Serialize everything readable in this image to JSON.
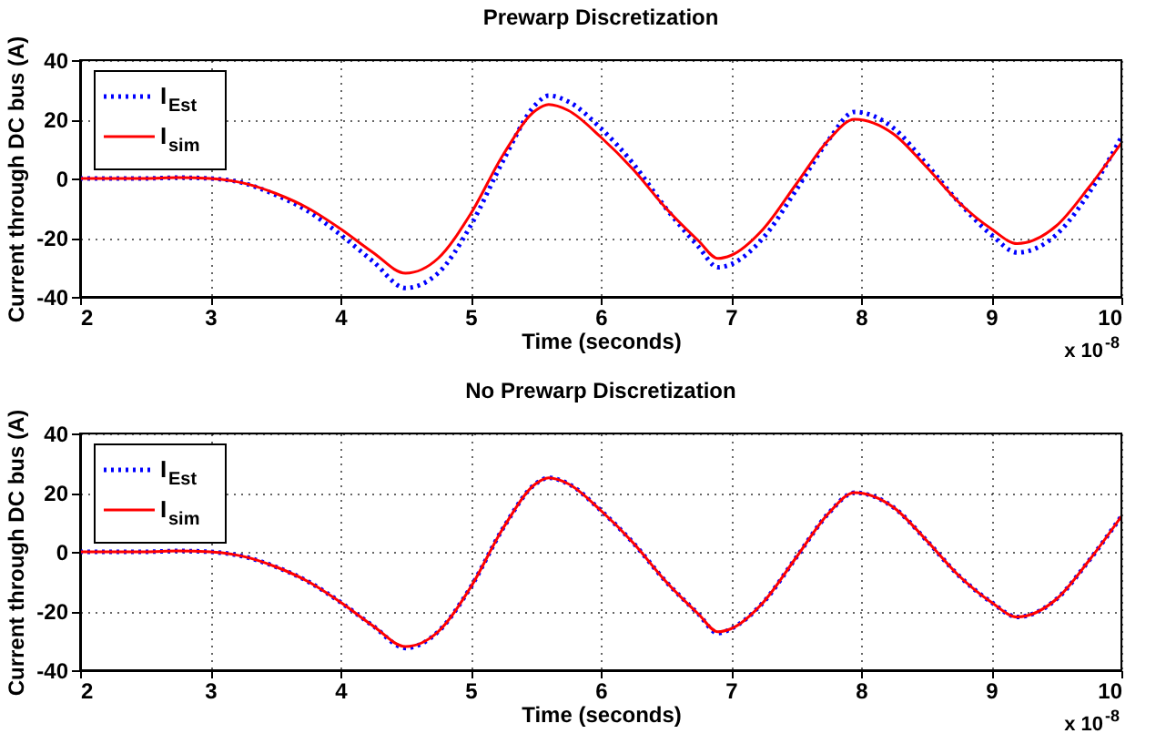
{
  "chart_data": [
    {
      "type": "line",
      "title": "Prewarp Discretization",
      "xlabel": "Time (seconds)",
      "ylabel": "Current through DC bus (A)",
      "annotations": [
        "x 10$^{-8}$"
      ],
      "xlim": [
        2,
        10
      ],
      "xticks": [
        2,
        3,
        4,
        5,
        6,
        7,
        8,
        9,
        10
      ],
      "ylim": [
        -40,
        40
      ],
      "yticks": [
        -40,
        -20,
        0,
        20,
        40
      ],
      "grid": true,
      "legend": "top left",
      "x": [
        2,
        2.25,
        2.5,
        2.75,
        3,
        3.25,
        3.5,
        3.75,
        4,
        4.25,
        4.5,
        4.75,
        5,
        5.25,
        5.5,
        5.6,
        5.75,
        6,
        6.25,
        6.5,
        6.75,
        6.9,
        7,
        7.25,
        7.5,
        7.75,
        7.95,
        8.25,
        8.5,
        8.75,
        9,
        9.2,
        9.5,
        9.75,
        10
      ],
      "series": [
        {
          "name": "I$_{Est}$",
          "color": "#0000ff",
          "line_style": "dotted",
          "values": [
            0,
            0,
            0,
            0.3,
            0,
            -1.5,
            -5.5,
            -11,
            -19,
            -28,
            -37,
            -32,
            -16,
            6,
            25,
            28,
            26,
            17,
            5,
            -10,
            -23,
            -30,
            -29,
            -20,
            -4,
            13,
            22.5,
            17,
            5,
            -8,
            -19,
            -25,
            -19,
            -5,
            14
          ]
        },
        {
          "name": "I$_{sim}$",
          "color": "#ff0000",
          "line_style": "solid",
          "values": [
            0,
            0,
            0,
            0.3,
            0,
            -1.5,
            -5,
            -10,
            -17,
            -25,
            -32,
            -27,
            -12,
            8,
            23,
            25,
            23,
            14,
            3,
            -10,
            -21,
            -27,
            -26,
            -17,
            -2,
            13,
            20,
            15,
            4,
            -8,
            -17,
            -22,
            -16,
            -3,
            12
          ]
        }
      ]
    },
    {
      "type": "line",
      "title": "No Prewarp Discretization",
      "xlabel": "Time (seconds)",
      "ylabel": "Current through DC bus (A)",
      "annotations": [
        "x 10$^{-8}$"
      ],
      "xlim": [
        2,
        10
      ],
      "xticks": [
        2,
        3,
        4,
        5,
        6,
        7,
        8,
        9,
        10
      ],
      "ylim": [
        -40,
        40
      ],
      "yticks": [
        -40,
        -20,
        0,
        20,
        40
      ],
      "grid": true,
      "legend": "top left",
      "x": [
        2,
        2.25,
        2.5,
        2.75,
        3,
        3.25,
        3.5,
        3.75,
        4,
        4.25,
        4.5,
        4.75,
        5,
        5.25,
        5.5,
        5.6,
        5.75,
        6,
        6.25,
        6.5,
        6.75,
        6.9,
        7,
        7.25,
        7.5,
        7.75,
        7.95,
        8.25,
        8.5,
        8.75,
        9,
        9.2,
        9.5,
        9.75,
        10
      ],
      "series": [
        {
          "name": "I$_{Est}$",
          "color": "#0000ff",
          "line_style": "dotted",
          "values": [
            0,
            0,
            0,
            0.3,
            0,
            -1.5,
            -5,
            -10,
            -17,
            -25,
            -32.5,
            -27,
            -12,
            8,
            23,
            25,
            23,
            14,
            3,
            -10,
            -21,
            -27.5,
            -26,
            -17,
            -2,
            13,
            20,
            15,
            4,
            -8,
            -17,
            -22,
            -16,
            -3,
            12
          ]
        },
        {
          "name": "I$_{sim}$",
          "color": "#ff0000",
          "line_style": "solid",
          "values": [
            0,
            0,
            0,
            0.3,
            0,
            -1.5,
            -5,
            -10,
            -17,
            -25,
            -32,
            -27,
            -12,
            8,
            23,
            25,
            23,
            14,
            3,
            -10,
            -21,
            -27,
            -26,
            -17,
            -2,
            13,
            20,
            15,
            4,
            -8,
            -17,
            -22,
            -16,
            -3,
            12
          ]
        }
      ]
    }
  ]
}
